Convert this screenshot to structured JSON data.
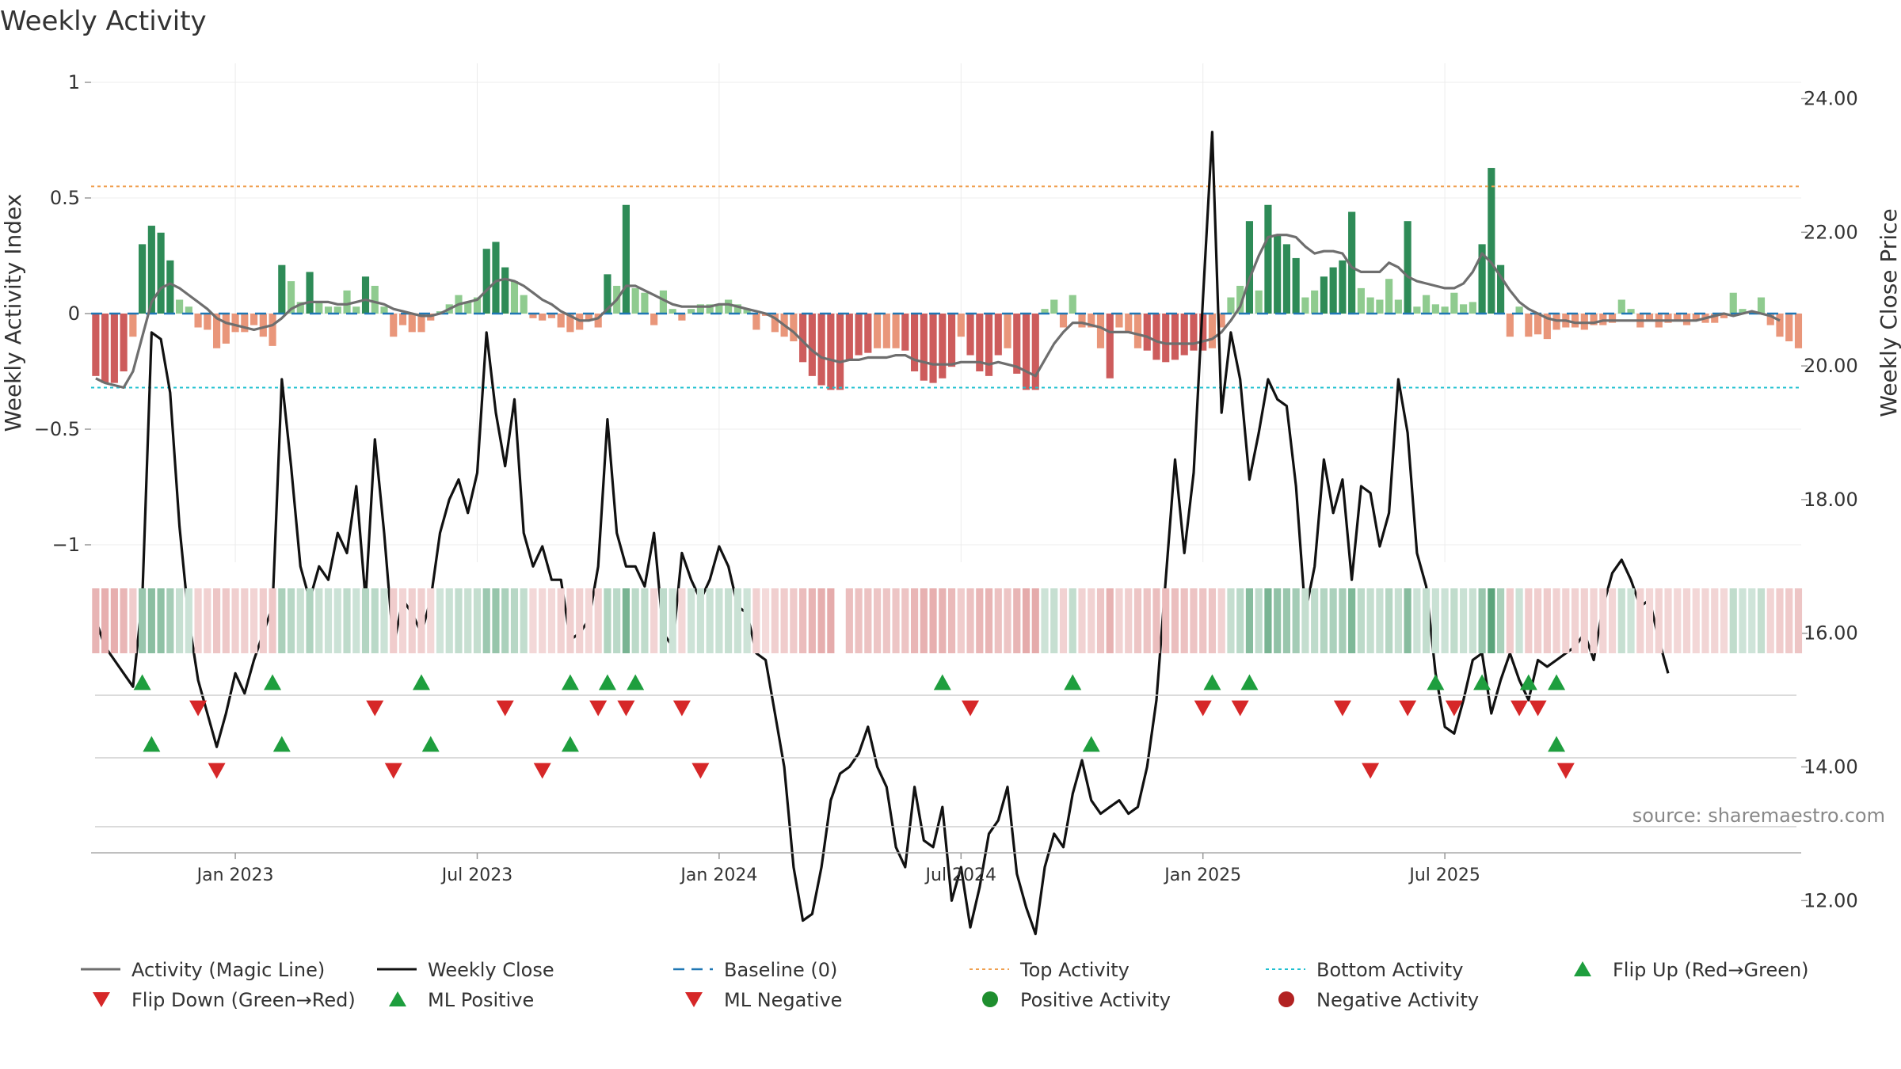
{
  "chart_data": {
    "type": "bar",
    "title": "Weekly Activity",
    "ylabel": "Weekly Activity Index",
    "y2label": "Weekly Close Price",
    "source": "source: sharemaestro.com",
    "ylim": [
      -1.1,
      1.1
    ],
    "y2lim": [
      10.0,
      25.0
    ],
    "yticks": [
      {
        "value": 1,
        "label": "1"
      },
      {
        "value": 0.5,
        "label": "0.5"
      },
      {
        "value": 0,
        "label": "0"
      },
      {
        "value": -0.5,
        "label": "−0.5"
      },
      {
        "value": -1,
        "label": "−1"
      }
    ],
    "y2ticks": [
      {
        "value": 24,
        "label": "24.00"
      },
      {
        "value": 22,
        "label": "22.00"
      },
      {
        "value": 20,
        "label": "20.00"
      },
      {
        "value": 18,
        "label": "18.00"
      },
      {
        "value": 16,
        "label": "16.00"
      },
      {
        "value": 14,
        "label": "14.00"
      },
      {
        "value": 12,
        "label": "12.00"
      }
    ],
    "xticks": [
      {
        "week": 15,
        "label": "Jan 2023"
      },
      {
        "week": 41,
        "label": "Jul 2023"
      },
      {
        "week": 67,
        "label": "Jan 2024"
      },
      {
        "week": 93,
        "label": "Jul 2024"
      },
      {
        "week": 119,
        "label": "Jan 2025"
      },
      {
        "week": 145,
        "label": "Jul 2025"
      }
    ],
    "top_activity": 0.55,
    "bottom_activity": -0.32,
    "colors": {
      "strong_pos": "#2e8b57",
      "weak_pos": "#8fcb8f",
      "strong_neg": "#cd5c5c",
      "weak_neg": "#e9967a",
      "close": "#111111",
      "magic": "#6e6e6e",
      "baseline": "#1f77b4",
      "top": "#f0a050",
      "bottom": "#20c0d0",
      "up": "#1e9e3e",
      "down": "#d62728",
      "pos_dot": "#1e8e2e",
      "neg_dot": "#b22222"
    },
    "activity": [
      -0.27,
      -0.3,
      -0.3,
      -0.25,
      -0.1,
      0.3,
      0.38,
      0.35,
      0.23,
      0.06,
      0.03,
      -0.06,
      -0.07,
      -0.15,
      -0.13,
      -0.08,
      -0.08,
      -0.05,
      -0.1,
      -0.14,
      0.21,
      0.14,
      0.05,
      0.18,
      0.05,
      0.03,
      0.03,
      0.1,
      0.03,
      0.16,
      0.12,
      0.03,
      -0.1,
      -0.05,
      -0.08,
      -0.08,
      -0.03,
      0.01,
      0.04,
      0.08,
      0.05,
      0.07,
      0.28,
      0.31,
      0.2,
      0.14,
      0.08,
      -0.02,
      -0.03,
      -0.02,
      -0.06,
      -0.08,
      -0.07,
      -0.03,
      -0.06,
      0.17,
      0.12,
      0.47,
      0.11,
      0.09,
      -0.05,
      0.1,
      0.02,
      -0.03,
      0.02,
      0.04,
      0.04,
      0.04,
      0.06,
      0.04,
      0.02,
      -0.07,
      -0.01,
      -0.08,
      -0.1,
      -0.12,
      -0.21,
      -0.27,
      -0.31,
      -0.33,
      -0.33,
      -0.2,
      -0.18,
      -0.17,
      -0.15,
      -0.15,
      -0.15,
      -0.16,
      -0.25,
      -0.29,
      -0.3,
      -0.28,
      -0.23,
      -0.1,
      -0.18,
      -0.25,
      -0.27,
      -0.18,
      -0.15,
      -0.26,
      -0.33,
      -0.33,
      0.02,
      0.06,
      -0.06,
      0.08,
      -0.06,
      -0.06,
      -0.15,
      -0.28,
      -0.06,
      -0.08,
      -0.15,
      -0.16,
      -0.2,
      -0.21,
      -0.2,
      -0.18,
      -0.16,
      -0.16,
      -0.15,
      -0.06,
      0.07,
      0.12,
      0.4,
      0.1,
      0.47,
      0.34,
      0.3,
      0.24,
      0.07,
      0.1,
      0.16,
      0.2,
      0.23,
      0.44,
      0.11,
      0.07,
      0.06,
      0.15,
      0.06,
      0.4,
      0.03,
      0.08,
      0.04,
      0.03,
      0.09,
      0.04,
      0.05,
      0.3,
      0.63,
      0.21,
      -0.1,
      0.03,
      -0.1,
      -0.09,
      -0.11,
      -0.07,
      -0.06,
      -0.06,
      -0.07,
      -0.05,
      -0.05,
      -0.04,
      0.06,
      0.02,
      -0.06,
      -0.03,
      -0.06,
      -0.04,
      -0.03,
      -0.05,
      -0.03,
      -0.04,
      -0.04,
      -0.02,
      0.09,
      0.02,
      0.01,
      0.07,
      -0.05,
      -0.1,
      -0.12,
      -0.15
    ],
    "close": [
      16.2,
      15.8,
      15.6,
      15.4,
      15.2,
      16.5,
      20.5,
      20.4,
      19.6,
      17.6,
      16.2,
      15.3,
      14.8,
      14.3,
      14.8,
      15.4,
      15.1,
      15.6,
      16.0,
      16.4,
      19.8,
      18.5,
      17.0,
      16.5,
      17.0,
      16.8,
      17.5,
      17.2,
      18.2,
      16.5,
      18.9,
      17.5,
      15.8,
      16.5,
      16.3,
      16.0,
      16.5,
      17.5,
      18.0,
      18.3,
      17.8,
      18.4,
      20.5,
      19.3,
      18.5,
      19.5,
      17.5,
      17.0,
      17.3,
      16.8,
      16.8,
      15.9,
      16.0,
      16.2,
      17.0,
      19.2,
      17.5,
      17.0,
      17.0,
      16.7,
      17.5,
      16.0,
      15.8,
      17.2,
      16.8,
      16.5,
      16.8,
      17.3,
      17.0,
      16.4,
      16.3,
      15.7,
      15.6,
      14.8,
      14.0,
      12.5,
      11.7,
      11.8,
      12.5,
      13.5,
      13.9,
      14.0,
      14.2,
      14.6,
      14.0,
      13.7,
      12.8,
      12.5,
      13.7,
      12.9,
      12.8,
      13.4,
      12.0,
      12.5,
      11.6,
      12.2,
      13.0,
      13.2,
      13.7,
      12.4,
      11.9,
      11.5,
      12.5,
      13.0,
      12.8,
      13.6,
      14.1,
      13.5,
      13.3,
      13.4,
      13.5,
      13.3,
      13.4,
      14.0,
      15.0,
      16.8,
      18.6,
      17.2,
      18.4,
      21.0,
      23.5,
      19.3,
      20.5,
      19.8,
      18.3,
      19.0,
      19.8,
      19.5,
      19.4,
      18.2,
      16.3,
      17.0,
      18.6,
      17.8,
      18.3,
      16.8,
      18.2,
      18.1,
      17.3,
      17.8,
      19.8,
      19.0,
      17.2,
      16.7,
      15.4,
      14.6,
      14.5,
      15.0,
      15.6,
      15.7,
      14.8,
      15.3,
      15.7,
      15.3,
      15.0,
      15.6,
      15.5,
      15.6,
      15.7,
      15.8,
      16.0,
      15.6,
      16.4,
      16.9,
      17.1,
      16.8,
      16.4,
      16.5,
      15.9,
      15.4
    ],
    "magic": [
      -0.28,
      -0.3,
      -0.31,
      -0.32,
      -0.25,
      -0.1,
      0.05,
      0.11,
      0.13,
      0.11,
      0.08,
      0.05,
      0.02,
      -0.02,
      -0.04,
      -0.05,
      -0.06,
      -0.07,
      -0.06,
      -0.05,
      -0.02,
      0.02,
      0.04,
      0.05,
      0.05,
      0.05,
      0.04,
      0.04,
      0.05,
      0.06,
      0.05,
      0.04,
      0.02,
      0.01,
      0.0,
      -0.01,
      -0.01,
      0.0,
      0.02,
      0.04,
      0.05,
      0.06,
      0.1,
      0.14,
      0.15,
      0.14,
      0.12,
      0.09,
      0.06,
      0.04,
      0.01,
      -0.01,
      -0.03,
      -0.03,
      -0.02,
      0.02,
      0.06,
      0.12,
      0.12,
      0.1,
      0.08,
      0.06,
      0.04,
      0.03,
      0.03,
      0.03,
      0.03,
      0.04,
      0.04,
      0.03,
      0.02,
      0.01,
      0.0,
      -0.02,
      -0.05,
      -0.08,
      -0.12,
      -0.16,
      -0.19,
      -0.2,
      -0.21,
      -0.2,
      -0.2,
      -0.19,
      -0.19,
      -0.19,
      -0.18,
      -0.18,
      -0.2,
      -0.21,
      -0.22,
      -0.22,
      -0.22,
      -0.21,
      -0.21,
      -0.21,
      -0.22,
      -0.21,
      -0.22,
      -0.23,
      -0.25,
      -0.27,
      -0.2,
      -0.13,
      -0.08,
      -0.04,
      -0.04,
      -0.05,
      -0.06,
      -0.08,
      -0.08,
      -0.08,
      -0.09,
      -0.1,
      -0.12,
      -0.13,
      -0.13,
      -0.13,
      -0.13,
      -0.12,
      -0.11,
      -0.08,
      -0.03,
      0.03,
      0.15,
      0.25,
      0.33,
      0.34,
      0.34,
      0.33,
      0.29,
      0.26,
      0.27,
      0.27,
      0.26,
      0.2,
      0.18,
      0.18,
      0.18,
      0.22,
      0.2,
      0.16,
      0.14,
      0.13,
      0.12,
      0.11,
      0.11,
      0.13,
      0.18,
      0.26,
      0.22,
      0.16,
      0.1,
      0.05,
      0.02,
      0.0,
      -0.02,
      -0.03,
      -0.03,
      -0.04,
      -0.04,
      -0.04,
      -0.03,
      -0.03,
      -0.03,
      -0.03,
      -0.03,
      -0.03,
      -0.03,
      -0.03,
      -0.03,
      -0.03,
      -0.03,
      -0.02,
      -0.01,
      0.0,
      -0.01,
      0.0,
      0.01,
      0.0,
      -0.01,
      -0.03
    ],
    "flip_up": [
      5,
      19,
      35,
      51,
      55,
      58,
      91,
      105,
      120,
      124,
      144,
      149,
      154,
      157
    ],
    "flip_down": [
      11,
      30,
      44,
      54,
      57,
      63,
      94,
      119,
      123,
      134,
      141,
      146,
      153,
      155
    ],
    "ml_positive": [
      6,
      20,
      36,
      51,
      107,
      157
    ],
    "ml_negative": [
      13,
      32,
      48,
      65,
      137,
      158
    ],
    "legend": [
      {
        "label": "Activity (Magic Line)",
        "symbol": "line-gray"
      },
      {
        "label": "Weekly Close",
        "symbol": "line-black"
      },
      {
        "label": "Baseline (0)",
        "symbol": "dash-blue"
      },
      {
        "label": "Top Activity",
        "symbol": "dot-orange"
      },
      {
        "label": "Bottom Activity",
        "symbol": "dot-cyan"
      },
      {
        "label": "Flip Up (Red→Green)",
        "symbol": "tri-up-green"
      },
      {
        "label": "Flip Down (Green→Red)",
        "symbol": "tri-down-red"
      },
      {
        "label": "ML Positive",
        "symbol": "tri-up-green"
      },
      {
        "label": "ML Negative",
        "symbol": "tri-down-red"
      },
      {
        "label": "Positive Activity",
        "symbol": "circle-green"
      },
      {
        "label": "Negative Activity",
        "symbol": "circle-red"
      }
    ]
  }
}
